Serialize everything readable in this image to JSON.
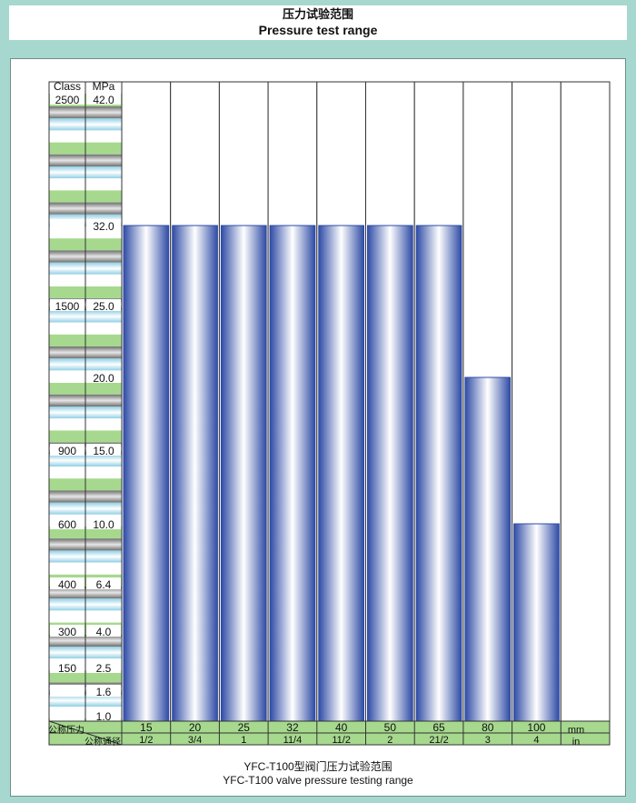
{
  "header": {
    "title_cn": "压力试验范围",
    "title_en": "Pressure test range"
  },
  "caption": {
    "cn": "YFC-T100型阀门压力试验范围",
    "en": "YFC-T100 valve pressure testing range"
  },
  "colors": {
    "bar_dark": "#2f4ca6",
    "bar_light": "#ffffff",
    "green_band": "#a6d98e",
    "blue_band": "#b6e0ee",
    "grey_band": "#9a9a9a"
  },
  "chart_data": {
    "type": "bar",
    "axis": {
      "class_header": "Class",
      "mpa_header": "MPa",
      "ylim": [
        0,
        42.0
      ]
    },
    "scale_rows": [
      {
        "class": "2500",
        "mpa": "42.0",
        "value": 42.0
      },
      {
        "class": "",
        "mpa": "32.0",
        "value": 32.0
      },
      {
        "class": "1500",
        "mpa": "25.0",
        "value": 25.0
      },
      {
        "class": "",
        "mpa": "20.0",
        "value": 20.0
      },
      {
        "class": "900",
        "mpa": "15.0",
        "value": 15.0
      },
      {
        "class": "600",
        "mpa": "10.0",
        "value": 10.0
      },
      {
        "class": "400",
        "mpa": "6.4",
        "value": 6.4
      },
      {
        "class": "300",
        "mpa": "4.0",
        "value": 4.0
      },
      {
        "class": "150",
        "mpa": "2.5",
        "value": 2.5
      },
      {
        "class": "",
        "mpa": "1.6",
        "value": 1.6
      },
      {
        "class": "",
        "mpa": "1.0",
        "value": 1.0
      }
    ],
    "row_labels": {
      "pressure": "公称压力",
      "diameter": "公称通径"
    },
    "units": {
      "mm": "mm",
      "in": "in"
    },
    "categories_mm": [
      "15",
      "20",
      "25",
      "32",
      "40",
      "50",
      "65",
      "80",
      "100"
    ],
    "categories_in": [
      "1/2",
      "3/4",
      "1",
      "11/4",
      "11/2",
      "2",
      "21/2",
      "3",
      "4"
    ],
    "values": [
      32.0,
      32.0,
      32.0,
      32.0,
      32.0,
      32.0,
      32.0,
      20.0,
      10.0
    ]
  }
}
